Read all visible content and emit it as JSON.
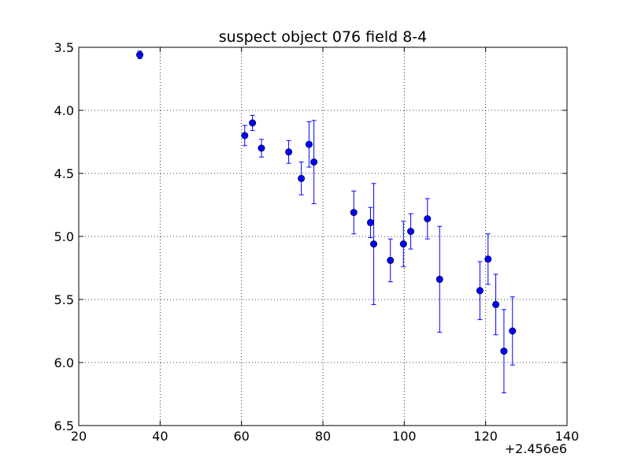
{
  "chart_data": {
    "type": "scatter",
    "title": "suspect object 076 field 8-4",
    "xlabel": "",
    "ylabel": "",
    "x_offset_label": "+2.456e6",
    "xlim": [
      20,
      140
    ],
    "ylim": [
      6.5,
      3.5
    ],
    "y_inverted": true,
    "grid": true,
    "xticks": [
      20,
      40,
      60,
      80,
      100,
      120,
      140
    ],
    "xtick_labels": [
      "20",
      "40",
      "60",
      "80",
      "100",
      "120",
      "140"
    ],
    "yticks": [
      3.5,
      4.0,
      4.5,
      5.0,
      5.5,
      6.0,
      6.5
    ],
    "ytick_labels": [
      "3.5",
      "4.0",
      "4.5",
      "5.0",
      "5.5",
      "6.0",
      "6.5"
    ],
    "marker_color": "#0000ff",
    "series": [
      {
        "points": [
          {
            "x": 35.0,
            "y": 3.56,
            "err": 0.03
          },
          {
            "x": 60.8,
            "y": 4.2,
            "err": 0.08
          },
          {
            "x": 62.7,
            "y": 4.1,
            "err": 0.06
          },
          {
            "x": 64.9,
            "y": 4.3,
            "err": 0.07
          },
          {
            "x": 71.6,
            "y": 4.33,
            "err": 0.09
          },
          {
            "x": 74.7,
            "y": 4.54,
            "err": 0.13
          },
          {
            "x": 76.6,
            "y": 4.27,
            "err": 0.18
          },
          {
            "x": 77.8,
            "y": 4.41,
            "err": 0.33
          },
          {
            "x": 87.6,
            "y": 4.81,
            "err": 0.17
          },
          {
            "x": 91.7,
            "y": 4.89,
            "err": 0.12
          },
          {
            "x": 92.5,
            "y": 5.06,
            "err": 0.48
          },
          {
            "x": 96.6,
            "y": 5.19,
            "err": 0.17
          },
          {
            "x": 99.8,
            "y": 5.06,
            "err": 0.18
          },
          {
            "x": 101.6,
            "y": 4.96,
            "err": 0.14
          },
          {
            "x": 105.7,
            "y": 4.86,
            "err": 0.16
          },
          {
            "x": 108.7,
            "y": 5.34,
            "err": 0.42
          },
          {
            "x": 118.6,
            "y": 5.43,
            "err": 0.23
          },
          {
            "x": 120.6,
            "y": 5.18,
            "err": 0.2
          },
          {
            "x": 122.5,
            "y": 5.54,
            "err": 0.24
          },
          {
            "x": 124.5,
            "y": 5.91,
            "err": 0.33
          },
          {
            "x": 126.6,
            "y": 5.75,
            "err": 0.27
          }
        ]
      }
    ]
  }
}
